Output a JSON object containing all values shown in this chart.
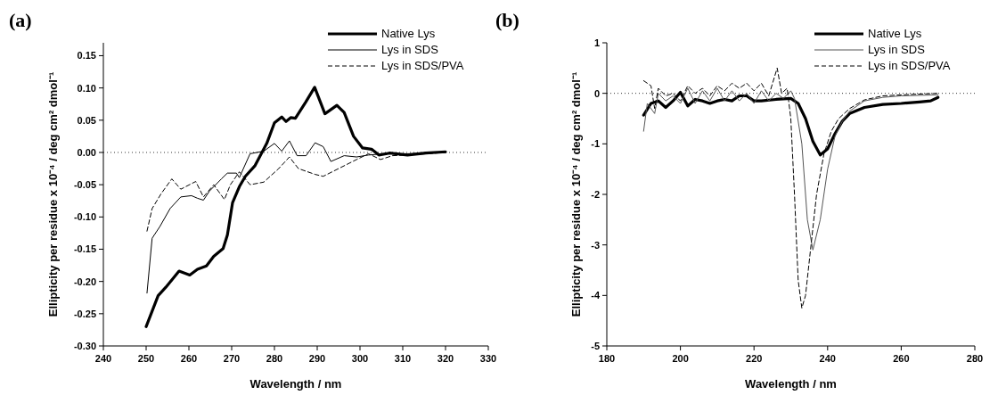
{
  "chart_data": [
    {
      "type": "line",
      "title": "(a)",
      "xlabel": "Wavelength / nm",
      "ylabel": "Ellipticity per residue x 10⁻⁴ / deg cm² dmol⁻¹",
      "xlim": [
        240,
        330
      ],
      "xticks": [
        240,
        250,
        260,
        270,
        280,
        290,
        300,
        310,
        320,
        330
      ],
      "ylim": [
        -0.3,
        0.17
      ],
      "yticks": [
        {
          "value": -0.3,
          "label": "-0.30"
        },
        -0.25,
        {
          "value": -0.2,
          "label": "-0.20"
        },
        -0.15,
        {
          "value": -0.1,
          "label": "-0.10"
        },
        -0.05,
        {
          "value": 0,
          "label": "0.00"
        },
        0.05,
        {
          "value": 0.1,
          "label": "0.10"
        },
        0.15
      ],
      "legend": "top right",
      "ref_lines": [
        {
          "axis": "y",
          "value": 0,
          "line_style": "dotted"
        }
      ],
      "series": [
        {
          "name": "Native Lys",
          "color": "#000000",
          "line_style": "solid",
          "x": [
            250,
            252.8,
            254.6,
            257.7,
            260.2,
            262,
            264.1,
            265.8,
            268,
            269,
            270.2,
            271.8,
            273.2,
            275.4,
            278.2,
            280,
            281.7,
            282.7,
            283.8,
            284.9,
            287.3,
            289.4,
            291.8,
            294.6,
            296.3,
            298.5,
            300.6,
            302.7,
            304.4,
            306.9,
            311.1,
            315.4,
            320
          ],
          "values": [
            -0.27,
            -0.222,
            -0.209,
            -0.184,
            -0.19,
            -0.181,
            -0.176,
            -0.161,
            -0.149,
            -0.128,
            -0.078,
            -0.053,
            -0.037,
            -0.021,
            0.014,
            0.046,
            0.055,
            0.048,
            0.054,
            0.053,
            0.078,
            0.101,
            0.06,
            0.073,
            0.062,
            0.025,
            0.007,
            0.005,
            -0.004,
            -0.001,
            -0.004,
            -0.001,
            0.001
          ]
        },
        {
          "name": "Lys in SDS",
          "color": "#000000",
          "line_style": "solid",
          "x": [
            250.2,
            251.4,
            253.2,
            255.6,
            258.1,
            260.6,
            262,
            263.4,
            264.8,
            267.6,
            269,
            271.1,
            271.8,
            274.3,
            277.5,
            280,
            281.7,
            283.5,
            285.3,
            287.4,
            289.5,
            291.4,
            293.2,
            296.3,
            299.2,
            302,
            305.5,
            311.1,
            320
          ],
          "values": [
            -0.218,
            -0.133,
            -0.115,
            -0.087,
            -0.069,
            -0.067,
            -0.071,
            -0.074,
            -0.06,
            -0.041,
            -0.032,
            -0.032,
            -0.039,
            -0.002,
            0.002,
            0.014,
            0.002,
            0.018,
            -0.005,
            -0.005,
            0.015,
            0.009,
            -0.014,
            -0.005,
            -0.007,
            -0.004,
            -0.002,
            -0.002,
            0
          ]
        },
        {
          "name": "Lys in SDS/PVA",
          "color": "#000000",
          "line_style": "dashed",
          "x": [
            250.2,
            251.4,
            253.5,
            256,
            258.1,
            261.6,
            263.4,
            265.8,
            268.3,
            269.7,
            271.8,
            274.3,
            277.5,
            281,
            283.5,
            285.6,
            289.5,
            291.4,
            295.6,
            299.2,
            302,
            304.8,
            307.6,
            311.1,
            320
          ],
          "values": [
            -0.122,
            -0.087,
            -0.064,
            -0.041,
            -0.057,
            -0.045,
            -0.069,
            -0.05,
            -0.073,
            -0.05,
            -0.03,
            -0.05,
            -0.046,
            -0.025,
            -0.007,
            -0.025,
            -0.034,
            -0.037,
            -0.023,
            -0.011,
            -0.002,
            -0.011,
            -0.005,
            -0.004,
            0
          ]
        }
      ]
    },
    {
      "type": "line",
      "title": "(b)",
      "xlabel": "Wavelength / nm",
      "ylabel": "Ellipticity per residue x 10⁻⁴ / deg cm² dmol⁻¹",
      "xlim": [
        180,
        280
      ],
      "xticks": [
        180,
        200,
        220,
        240,
        260,
        280
      ],
      "ylim": [
        -5,
        1
      ],
      "yticks": [
        -5,
        -4,
        -3,
        -2,
        -1,
        0,
        1
      ],
      "legend": "top right",
      "ref_lines": [
        {
          "axis": "y",
          "value": 0,
          "line_style": "dotted"
        }
      ],
      "series": [
        {
          "name": "Native Lys",
          "color": "#000000",
          "line_style": "solid",
          "x": [
            190,
            192,
            194,
            196,
            198,
            200,
            202,
            204,
            206,
            208,
            210,
            212,
            214,
            216,
            218,
            220,
            222,
            226,
            230,
            232,
            234,
            236,
            238,
            240,
            242,
            244,
            246,
            250,
            255,
            260,
            265,
            268,
            270
          ],
          "values": [
            -0.43,
            -0.2,
            -0.15,
            -0.28,
            -0.15,
            0.02,
            -0.25,
            -0.12,
            -0.15,
            -0.2,
            -0.15,
            -0.12,
            -0.15,
            -0.05,
            -0.05,
            -0.15,
            -0.15,
            -0.12,
            -0.1,
            -0.2,
            -0.5,
            -0.95,
            -1.22,
            -1.1,
            -0.8,
            -0.55,
            -0.4,
            -0.28,
            -0.22,
            -0.2,
            -0.17,
            -0.15,
            -0.08
          ]
        },
        {
          "name": "Lys in SDS",
          "color": "#555555",
          "line_style": "solid",
          "x": [
            190,
            191,
            193,
            194,
            196,
            198,
            200,
            202,
            204,
            206,
            208,
            210,
            212,
            214,
            216,
            218,
            220,
            222,
            224,
            226,
            228,
            230,
            231,
            233,
            234.5,
            236,
            238,
            240,
            242,
            244,
            246,
            250,
            255,
            260,
            270
          ],
          "values": [
            -0.75,
            -0.2,
            -0.4,
            0,
            -0.15,
            -0.05,
            -0.2,
            0.1,
            -0.2,
            0.05,
            -0.15,
            0.1,
            -0.15,
            0.05,
            -0.15,
            0,
            -0.2,
            0.05,
            -0.15,
            0,
            -0.1,
            0.05,
            -0.1,
            -1,
            -2.5,
            -3.1,
            -2.5,
            -1.5,
            -0.85,
            -0.55,
            -0.35,
            -0.15,
            -0.08,
            -0.05,
            -0.03
          ]
        },
        {
          "name": "Lys in SDS/PVA",
          "color": "#000000",
          "line_style": "dashed",
          "x": [
            190,
            192,
            193,
            194,
            196,
            198,
            200,
            202,
            204,
            206,
            208,
            210,
            212,
            214,
            216,
            218,
            220,
            222,
            224,
            226.3,
            227.5,
            229,
            230,
            231,
            232,
            233,
            234,
            235.5,
            237,
            239,
            241,
            243,
            246,
            250,
            255,
            260,
            270
          ],
          "values": [
            0.25,
            0.15,
            -0.3,
            0.1,
            -0.05,
            0,
            -0.15,
            0.15,
            0,
            0.1,
            -0.05,
            0.15,
            0.05,
            0.2,
            0.1,
            0.2,
            0.05,
            0.2,
            -0.05,
            0.5,
            0,
            0.1,
            -0.5,
            -2,
            -3.7,
            -4.25,
            -4,
            -3,
            -2,
            -1.2,
            -0.75,
            -0.5,
            -0.3,
            -0.13,
            -0.05,
            -0.03,
            0
          ]
        }
      ]
    }
  ]
}
